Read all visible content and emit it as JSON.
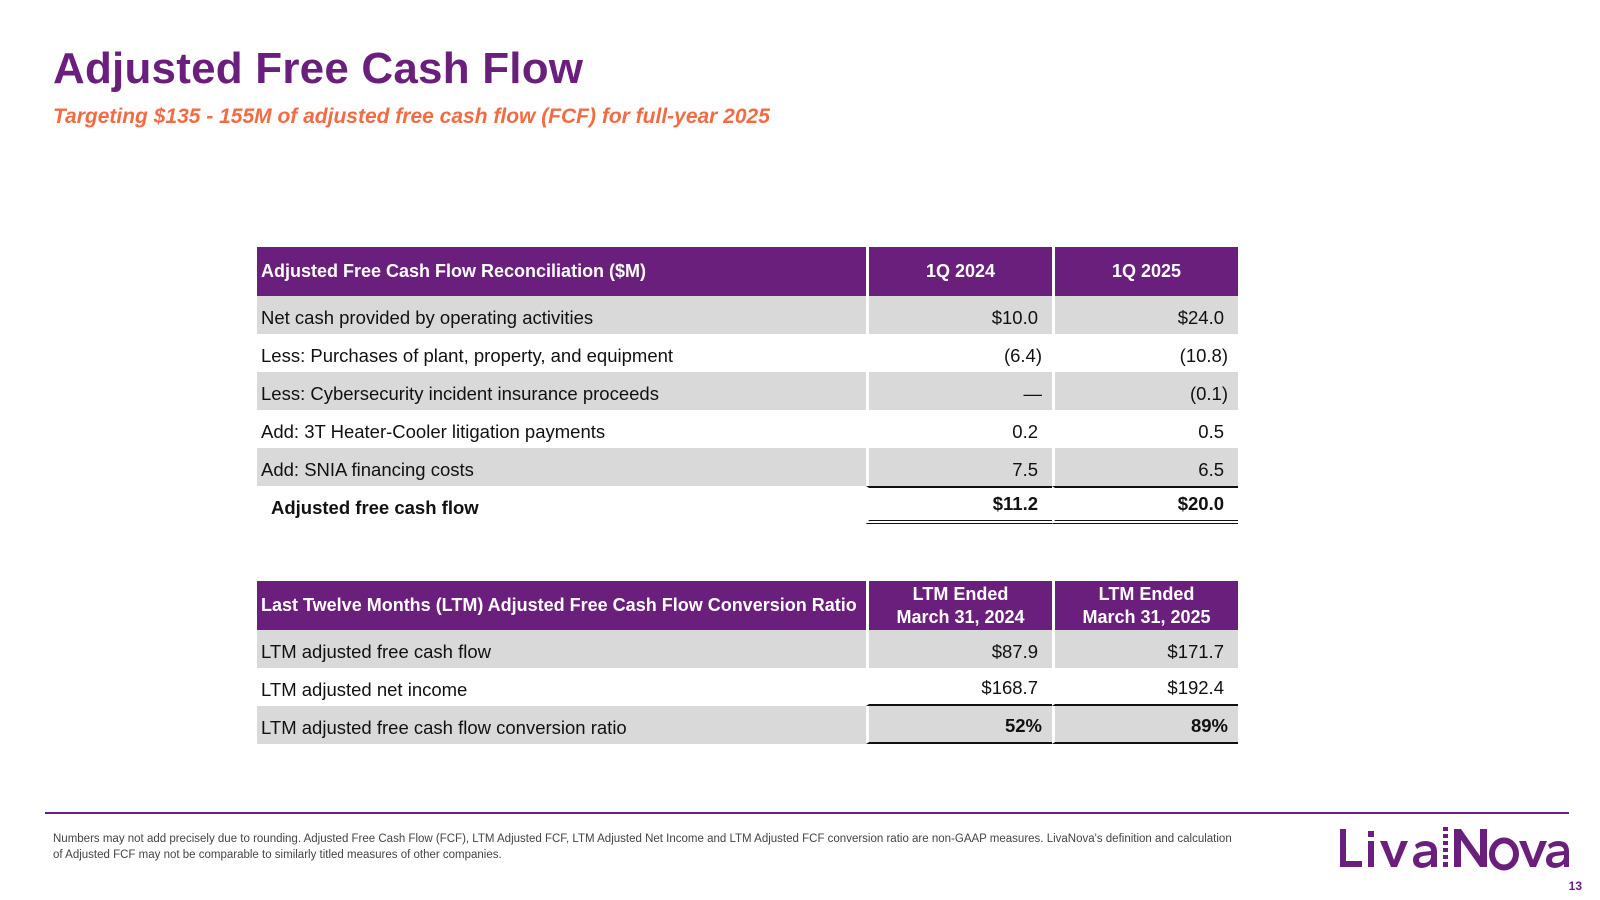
{
  "title": "Adjusted Free Cash Flow",
  "subtitle": "Targeting $135 - 155M of adjusted free cash flow (FCF) for full-year 2025",
  "table1": {
    "header": [
      "Adjusted Free Cash Flow Reconciliation ($M)",
      "1Q 2024",
      "1Q 2025"
    ],
    "rows": [
      {
        "label": "Net cash provided by operating activities",
        "q1_2024": "$10.0",
        "q1_2025": "$24.0"
      },
      {
        "label": "Less: Purchases of plant, property, and equipment",
        "q1_2024": "(6.4)",
        "q1_2025": "(10.8)"
      },
      {
        "label": "Less: Cybersecurity incident insurance proceeds",
        "q1_2024": "—",
        "q1_2025": "(0.1)"
      },
      {
        "label": "Add: 3T Heater-Cooler litigation payments",
        "q1_2024": "0.2",
        "q1_2025": "0.5"
      },
      {
        "label": "Add: SNIA financing costs",
        "q1_2024": "7.5",
        "q1_2025": "6.5"
      }
    ],
    "total": {
      "label": "Adjusted free cash flow",
      "q1_2024": "$11.2",
      "q1_2025": "$20.0"
    }
  },
  "table2": {
    "header": {
      "label": "Last Twelve Months (LTM) Adjusted Free Cash Flow Conversion Ratio",
      "col1_line1": "LTM Ended",
      "col1_line2": "March 31, 2024",
      "col2_line1": "LTM Ended",
      "col2_line2": "March 31, 2025"
    },
    "rows": [
      {
        "label": "LTM adjusted free cash flow",
        "v2024": "$87.9",
        "v2025": "$171.7"
      },
      {
        "label": "LTM adjusted net income",
        "v2024": "$168.7",
        "v2025": "$192.4"
      },
      {
        "label": "LTM adjusted free cash flow conversion ratio",
        "v2024": "52%",
        "v2025": "89%"
      }
    ]
  },
  "footnote": "Numbers may not add precisely due to rounding. Adjusted Free Cash Flow (FCF), LTM Adjusted FCF, LTM Adjusted Net Income and LTM Adjusted FCF conversion ratio are non-GAAP measures. LivaNova's definition and calculation of Adjusted FCF may not be comparable to similarly titled measures of other companies.",
  "logo_text": "LivaNova",
  "page_number": "13",
  "colors": {
    "brand_purple": "#6b1f7c",
    "accent_orange": "#f26b43",
    "row_shade": "#d9d9d9"
  }
}
